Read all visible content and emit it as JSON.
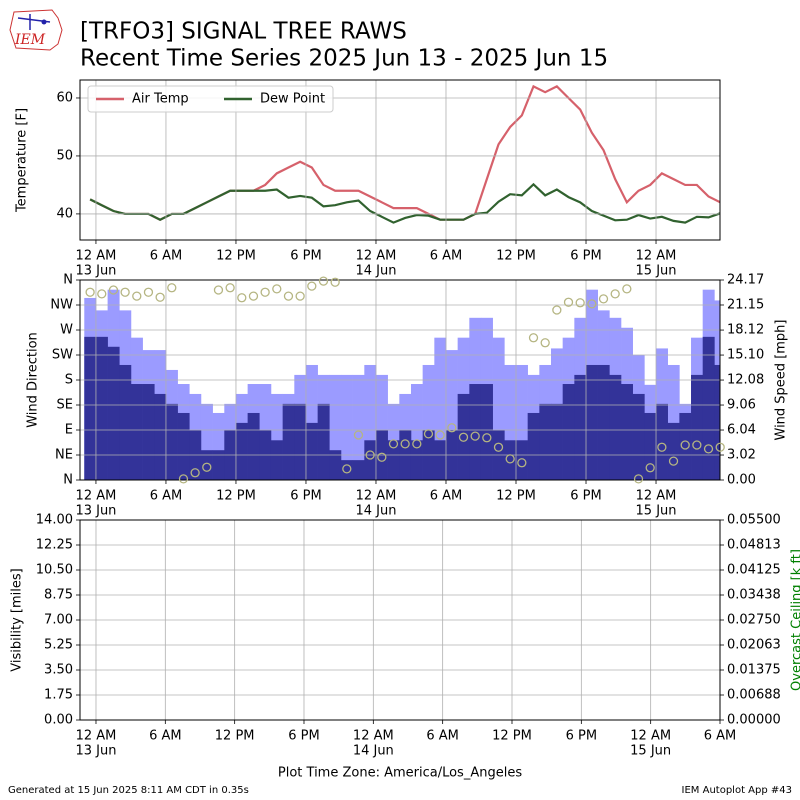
{
  "title": "[TRFO3] SIGNAL TREE RAWS",
  "subtitle": "Recent Time Series 2025 Jun 13 - 2025 Jun 15",
  "logo": "IEM",
  "xlabel": "Plot Time Zone: America/Los_Angeles",
  "footer_left": "Generated at 15 Jun 2025 8:11 AM CDT in 0.35s",
  "footer_right": "IEM Autoplot App #43",
  "chart_data": [
    {
      "type": "line",
      "ylabel": "Temperature [F]",
      "grid": true,
      "legend": "upper left",
      "xlim": [
        "2025-06-12T22:38",
        "2025-06-15T05:29"
      ],
      "xticks": [
        {
          "value": "2025-06-13T00:00",
          "label": "12 AM"
        },
        {
          "value": "2025-06-13T06:00",
          "label": "6 AM"
        },
        {
          "value": "2025-06-13T12:00",
          "label": "12 PM"
        },
        {
          "value": "2025-06-13T18:00",
          "label": "6 PM"
        },
        {
          "value": "2025-06-14T00:00",
          "label": "12 AM"
        },
        {
          "value": "2025-06-14T06:00",
          "label": "6 AM"
        },
        {
          "value": "2025-06-14T12:00",
          "label": "12 PM"
        },
        {
          "value": "2025-06-14T18:00",
          "label": "6 PM"
        },
        {
          "value": "2025-06-15T00:00",
          "label": "12 AM"
        }
      ],
      "xtick_dates": [
        {
          "value": "2025-06-13T00:00",
          "label": "13 Jun"
        },
        {
          "value": "2025-06-14T00:00",
          "label": "14 Jun"
        },
        {
          "value": "2025-06-15T00:00",
          "label": "15 Jun"
        }
      ],
      "ylim": [
        35.5,
        63.1
      ],
      "yticks": [
        40,
        50,
        60
      ],
      "x": [
        "2025-06-12T23:30",
        "2025-06-13T00:30",
        "2025-06-13T01:30",
        "2025-06-13T02:30",
        "2025-06-13T03:30",
        "2025-06-13T04:30",
        "2025-06-13T05:30",
        "2025-06-13T06:30",
        "2025-06-13T07:30",
        "2025-06-13T08:30",
        "2025-06-13T09:30",
        "2025-06-13T10:30",
        "2025-06-13T11:30",
        "2025-06-13T12:30",
        "2025-06-13T13:30",
        "2025-06-13T14:30",
        "2025-06-13T15:30",
        "2025-06-13T16:30",
        "2025-06-13T17:30",
        "2025-06-13T18:30",
        "2025-06-13T19:30",
        "2025-06-13T20:30",
        "2025-06-13T21:30",
        "2025-06-13T22:30",
        "2025-06-13T23:30",
        "2025-06-14T00:30",
        "2025-06-14T01:30",
        "2025-06-14T02:30",
        "2025-06-14T03:30",
        "2025-06-14T04:30",
        "2025-06-14T05:30",
        "2025-06-14T06:30",
        "2025-06-14T07:30",
        "2025-06-14T08:30",
        "2025-06-14T09:30",
        "2025-06-14T10:30",
        "2025-06-14T11:30",
        "2025-06-14T12:30",
        "2025-06-14T13:30",
        "2025-06-14T14:30",
        "2025-06-14T15:30",
        "2025-06-14T16:30",
        "2025-06-14T17:30",
        "2025-06-14T18:30",
        "2025-06-14T19:30",
        "2025-06-14T20:30",
        "2025-06-14T21:30",
        "2025-06-14T22:30",
        "2025-06-14T23:30",
        "2025-06-15T00:30",
        "2025-06-15T01:30",
        "2025-06-15T02:30",
        "2025-06-15T03:30",
        "2025-06-15T04:30",
        "2025-06-15T05:30"
      ],
      "series": [
        {
          "name": "Air Temp",
          "color": "#d6616b",
          "type": "line",
          "values": [
            42.5,
            41.5,
            40.5,
            40,
            40,
            40,
            39,
            40,
            40,
            41,
            42,
            43,
            44,
            44,
            44,
            45,
            47,
            48,
            49,
            48,
            45,
            44,
            44,
            44,
            43,
            42,
            41,
            41,
            41,
            40,
            39,
            39,
            39,
            40,
            46,
            52,
            55,
            57,
            62,
            61,
            62,
            60,
            58,
            54,
            51,
            46,
            42,
            44,
            45,
            47,
            46,
            45,
            45,
            43,
            42
          ]
        },
        {
          "name": "Dew Point",
          "color": "#31622f",
          "type": "line",
          "values": [
            42.5,
            41.5,
            40.5,
            40,
            40,
            40,
            39,
            40,
            40,
            41,
            42,
            43,
            44,
            44,
            44,
            44,
            44.2,
            42.8,
            43.1,
            42.8,
            41.3,
            41.5,
            42,
            42.3,
            40.5,
            39.5,
            38.5,
            39.3,
            39.8,
            39.7,
            39,
            39,
            39,
            40,
            40.2,
            42.1,
            43.4,
            43.2,
            45.1,
            43.2,
            44.2,
            42.9,
            42,
            40.5,
            39.7,
            38.9,
            39,
            39.8,
            39.2,
            39.5,
            38.8,
            38.5,
            39.5,
            39.4,
            40.1
          ]
        }
      ]
    },
    {
      "type": "bar",
      "ylabel": "Wind Direction",
      "y2label": "Wind Speed [mph]",
      "grid": true,
      "xlim": [
        "2025-06-12T22:38",
        "2025-06-15T05:29"
      ],
      "xticks": [
        {
          "value": "2025-06-13T00:00",
          "label": "12 AM"
        },
        {
          "value": "2025-06-13T06:00",
          "label": "6 AM"
        },
        {
          "value": "2025-06-13T12:00",
          "label": "12 PM"
        },
        {
          "value": "2025-06-13T18:00",
          "label": "6 PM"
        },
        {
          "value": "2025-06-14T00:00",
          "label": "12 AM"
        },
        {
          "value": "2025-06-14T06:00",
          "label": "6 AM"
        },
        {
          "value": "2025-06-14T12:00",
          "label": "12 PM"
        },
        {
          "value": "2025-06-14T18:00",
          "label": "6 PM"
        },
        {
          "value": "2025-06-15T00:00",
          "label": "12 AM"
        }
      ],
      "xtick_dates": [
        {
          "value": "2025-06-13T00:00",
          "label": "13 Jun"
        },
        {
          "value": "2025-06-14T00:00",
          "label": "14 Jun"
        },
        {
          "value": "2025-06-15T00:00",
          "label": "15 Jun"
        }
      ],
      "ylim": [
        0,
        360
      ],
      "yticks": [
        {
          "value": 0,
          "label": "N"
        },
        {
          "value": 45,
          "label": "NE"
        },
        {
          "value": 90,
          "label": "E"
        },
        {
          "value": 135,
          "label": "SE"
        },
        {
          "value": 180,
          "label": "S"
        },
        {
          "value": 225,
          "label": "SW"
        },
        {
          "value": 270,
          "label": "W"
        },
        {
          "value": 315,
          "label": "NW"
        },
        {
          "value": 360,
          "label": "N"
        }
      ],
      "y2lim": [
        0,
        24.17
      ],
      "y2ticks": [
        {
          "value": 0,
          "label": "0.00"
        },
        3.02,
        6.04,
        9.06,
        12.08,
        {
          "value": 15.1,
          "label": "15.10"
        },
        18.12,
        21.15,
        24.17
      ],
      "x": [
        "2025-06-12T23:30",
        "2025-06-13T00:30",
        "2025-06-13T01:30",
        "2025-06-13T02:30",
        "2025-06-13T03:30",
        "2025-06-13T04:30",
        "2025-06-13T05:30",
        "2025-06-13T06:30",
        "2025-06-13T07:30",
        "2025-06-13T08:30",
        "2025-06-13T09:30",
        "2025-06-13T10:30",
        "2025-06-13T11:30",
        "2025-06-13T12:30",
        "2025-06-13T13:30",
        "2025-06-13T14:30",
        "2025-06-13T15:30",
        "2025-06-13T16:30",
        "2025-06-13T17:30",
        "2025-06-13T18:30",
        "2025-06-13T19:30",
        "2025-06-13T20:30",
        "2025-06-13T21:30",
        "2025-06-13T22:30",
        "2025-06-13T23:30",
        "2025-06-14T00:30",
        "2025-06-14T01:30",
        "2025-06-14T02:30",
        "2025-06-14T03:30",
        "2025-06-14T04:30",
        "2025-06-14T05:30",
        "2025-06-14T06:30",
        "2025-06-14T07:30",
        "2025-06-14T08:30",
        "2025-06-14T09:30",
        "2025-06-14T10:30",
        "2025-06-14T11:30",
        "2025-06-14T12:30",
        "2025-06-14T13:30",
        "2025-06-14T14:30",
        "2025-06-14T15:30",
        "2025-06-14T16:30",
        "2025-06-14T17:30",
        "2025-06-14T18:30",
        "2025-06-14T19:30",
        "2025-06-14T20:30",
        "2025-06-14T21:30",
        "2025-06-14T22:30",
        "2025-06-14T23:30",
        "2025-06-15T00:30",
        "2025-06-15T01:30",
        "2025-06-15T02:30",
        "2025-06-15T03:30",
        "2025-06-15T04:30",
        "2025-06-15T05:30"
      ],
      "series": [
        {
          "color": "#9b9bff",
          "type": "bar",
          "axis": "y2",
          "values": [
            22.0,
            20.5,
            23.0,
            20.5,
            17.2,
            15.7,
            15.7,
            13.3,
            11.6,
            10.4,
            9.2,
            8.1,
            9.2,
            10.4,
            11.6,
            11.6,
            10.4,
            10.4,
            12.7,
            13.9,
            12.7,
            12.7,
            12.7,
            12.7,
            13.9,
            12.7,
            9.2,
            10.4,
            11.6,
            13.9,
            17.2,
            15.7,
            17.2,
            19.6,
            19.6,
            17.2,
            13.9,
            13.9,
            12.7,
            13.9,
            15.9,
            17.2,
            19.6,
            23.0,
            20.5,
            19.6,
            18.4,
            15.1,
            11.5,
            15.9,
            13.9,
            9.2,
            17.2,
            23.0,
            21.7
          ]
        },
        {
          "color": "#333399",
          "type": "bar",
          "axis": "y2",
          "values": [
            17.3,
            17.3,
            16.1,
            13.9,
            11.6,
            11.6,
            10.4,
            9.2,
            8.1,
            6.0,
            3.6,
            3.6,
            6.0,
            6.9,
            8.1,
            6.0,
            4.8,
            9.2,
            9.2,
            6.9,
            9.2,
            3.6,
            2.4,
            2.4,
            4.8,
            6.0,
            4.8,
            6.0,
            4.8,
            6.0,
            4.8,
            6.0,
            10.4,
            11.6,
            11.6,
            6.0,
            4.8,
            4.8,
            8.1,
            9.2,
            9.2,
            11.6,
            12.7,
            13.9,
            13.9,
            12.7,
            11.6,
            10.4,
            8.1,
            9.2,
            6.9,
            8.1,
            12.7,
            17.3,
            13.9
          ]
        },
        {
          "color": "#b5b582",
          "type": "scatter",
          "values": [
            338,
            335,
            342,
            338,
            331,
            338,
            329,
            346,
            2,
            13,
            23,
            342,
            346,
            328,
            331,
            338,
            344,
            331,
            331,
            349,
            358,
            356,
            20,
            81,
            45,
            41,
            65,
            65,
            65,
            83,
            81,
            94,
            77,
            79,
            76,
            59,
            38,
            31,
            256,
            247,
            306,
            320,
            319,
            317,
            326,
            335,
            344,
            2,
            22,
            59,
            34,
            63,
            63,
            56,
            59
          ]
        }
      ]
    },
    {
      "type": "line",
      "ylabel": "Visibility [miles]",
      "y2label": "Overcast Ceiling [k ft]",
      "y2label_color": "#008000",
      "grid": true,
      "xlim": [
        "2025-06-12T22:37",
        "2025-06-15T06:00"
      ],
      "xticks": [
        {
          "value": "2025-06-13T00:00",
          "label": "12 AM"
        },
        {
          "value": "2025-06-13T06:00",
          "label": "6 AM"
        },
        {
          "value": "2025-06-13T12:00",
          "label": "12 PM"
        },
        {
          "value": "2025-06-13T18:00",
          "label": "6 PM"
        },
        {
          "value": "2025-06-14T00:00",
          "label": "12 AM"
        },
        {
          "value": "2025-06-14T06:00",
          "label": "6 AM"
        },
        {
          "value": "2025-06-14T12:00",
          "label": "12 PM"
        },
        {
          "value": "2025-06-14T18:00",
          "label": "6 PM"
        },
        {
          "value": "2025-06-15T00:00",
          "label": "12 AM"
        },
        {
          "value": "2025-06-15T06:00",
          "label": "6 AM"
        }
      ],
      "xtick_dates": [
        {
          "value": "2025-06-13T00:00",
          "label": "13 Jun"
        },
        {
          "value": "2025-06-14T00:00",
          "label": "14 Jun"
        },
        {
          "value": "2025-06-15T00:00",
          "label": "15 Jun"
        }
      ],
      "ylim": [
        0,
        14
      ],
      "yticks": [
        {
          "value": 0,
          "label": "0.00"
        },
        1.75,
        {
          "value": 3.5,
          "label": "3.50"
        },
        5.25,
        {
          "value": 7,
          "label": "7.00"
        },
        8.75,
        {
          "value": 10.5,
          "label": "10.50"
        },
        12.25,
        {
          "value": 14,
          "label": "14.00"
        }
      ],
      "y2lim": [
        0,
        0.055
      ],
      "y2ticks": [
        {
          "value": 0,
          "label": "0.00000"
        },
        {
          "value": 0.006875,
          "label": "0.00688"
        },
        {
          "value": 0.01375,
          "label": "0.01375"
        },
        {
          "value": 0.020625,
          "label": "0.02063"
        },
        {
          "value": 0.0275,
          "label": "0.02750"
        },
        {
          "value": 0.034375,
          "label": "0.03438"
        },
        {
          "value": 0.04125,
          "label": "0.04125"
        },
        {
          "value": 0.048125,
          "label": "0.04813"
        },
        {
          "value": 0.055,
          "label": "0.05500"
        }
      ],
      "series": []
    }
  ]
}
